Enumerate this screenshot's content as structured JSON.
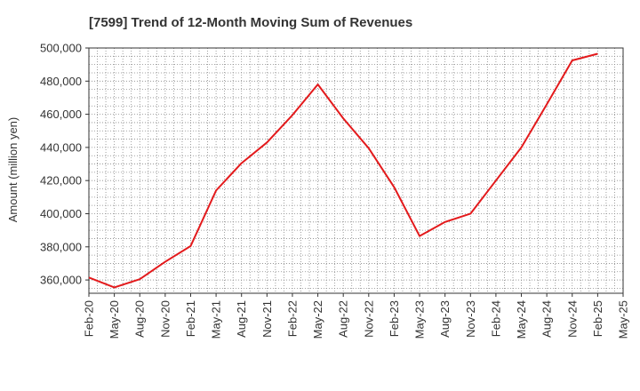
{
  "chart_data": {
    "type": "line",
    "title": "[7599]  Trend of 12-Month Moving Sum of Revenues",
    "xlabel": "",
    "ylabel": "Amount (million yen)",
    "ylim": [
      352000,
      500000
    ],
    "yticks": [
      360000,
      380000,
      400000,
      420000,
      440000,
      460000,
      480000,
      500000
    ],
    "ytick_labels": [
      "360,000",
      "380,000",
      "400,000",
      "420,000",
      "440,000",
      "460,000",
      "480,000",
      "500,000"
    ],
    "xtick_labels": [
      "Feb-20",
      "May-20",
      "Aug-20",
      "Nov-20",
      "Feb-21",
      "May-21",
      "Aug-21",
      "Nov-21",
      "Feb-22",
      "May-22",
      "Aug-22",
      "Nov-22",
      "Feb-23",
      "May-23",
      "Aug-23",
      "Nov-23",
      "Feb-24",
      "May-24",
      "Aug-24",
      "Nov-24",
      "Feb-25",
      "May-25"
    ],
    "grid": true,
    "series": [
      {
        "color": "#e31a1c",
        "x": [
          "Feb-20",
          "May-20",
          "Aug-20",
          "Nov-20",
          "Feb-21",
          "May-21",
          "Aug-21",
          "Nov-21",
          "Feb-22",
          "May-22",
          "Aug-22",
          "Nov-22",
          "Feb-23",
          "May-23",
          "Aug-23",
          "Nov-23",
          "Feb-24",
          "May-24",
          "Aug-24",
          "Nov-24",
          "Feb-25"
        ],
        "values": [
          361500,
          355500,
          360500,
          371000,
          380500,
          414000,
          430500,
          443000,
          459500,
          478000,
          457500,
          439500,
          416000,
          386500,
          395000,
          400000,
          420000,
          440000,
          466000,
          492500,
          496500
        ]
      }
    ]
  }
}
